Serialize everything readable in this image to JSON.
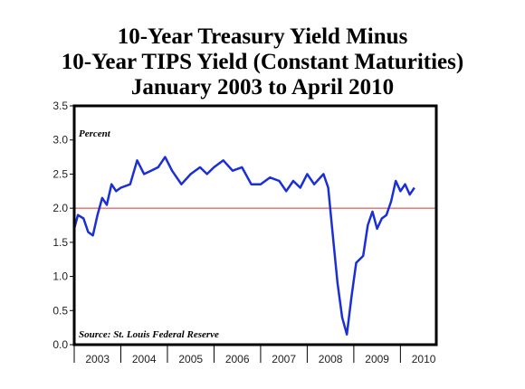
{
  "chart_data": {
    "type": "line",
    "title": [
      "10-Year Treasury Yield Minus",
      "10-Year TIPS Yield (Constant Maturities)",
      "January 2003 to April 2010"
    ],
    "annotations": [
      "Percent",
      "Source: St. Louis Federal Reserve"
    ],
    "series": [
      {
        "color": "#1a2fd6",
        "x": [
          2003.0,
          2003.08,
          2003.2,
          2003.3,
          2003.4,
          2003.5,
          2003.6,
          2003.7,
          2003.8,
          2003.9,
          2004.0,
          2004.2,
          2004.35,
          2004.5,
          2004.65,
          2004.8,
          2004.95,
          2005.1,
          2005.3,
          2005.5,
          2005.7,
          2005.85,
          2006.0,
          2006.2,
          2006.4,
          2006.6,
          2006.8,
          2007.0,
          2007.2,
          2007.4,
          2007.55,
          2007.7,
          2007.85,
          2008.0,
          2008.15,
          2008.35,
          2008.45,
          2008.55,
          2008.65,
          2008.75,
          2008.85,
          2008.95,
          2009.05,
          2009.2,
          2009.3,
          2009.4,
          2009.5,
          2009.6,
          2009.7,
          2009.8,
          2009.9,
          2010.0,
          2010.1,
          2010.2,
          2010.3
        ],
        "values": [
          1.7,
          1.9,
          1.85,
          1.65,
          1.6,
          1.9,
          2.15,
          2.05,
          2.35,
          2.25,
          2.3,
          2.35,
          2.7,
          2.5,
          2.55,
          2.6,
          2.75,
          2.55,
          2.35,
          2.5,
          2.6,
          2.5,
          2.6,
          2.7,
          2.55,
          2.6,
          2.35,
          2.35,
          2.45,
          2.4,
          2.25,
          2.4,
          2.3,
          2.5,
          2.35,
          2.5,
          2.3,
          1.6,
          0.9,
          0.4,
          0.15,
          0.7,
          1.2,
          1.3,
          1.75,
          1.95,
          1.7,
          1.85,
          1.9,
          2.1,
          2.4,
          2.25,
          2.35,
          2.2,
          2.3
        ]
      }
    ],
    "reference_line": {
      "value": 2,
      "color": "#e03030"
    },
    "xlim": [
      2003,
      2010.77
    ],
    "xticks": [
      2003,
      2004,
      2005,
      2006,
      2007,
      2008,
      2009,
      2010
    ],
    "ylim": [
      0,
      3.5
    ],
    "yticks": [
      {
        "value": 0,
        "label": "0.0"
      },
      {
        "value": 0.5,
        "label": "0.5"
      },
      {
        "value": 1,
        "label": "1.0"
      },
      {
        "value": 1.5,
        "label": "1.5"
      },
      {
        "value": 2,
        "label": "2.0"
      },
      {
        "value": 2.5,
        "label": "2.5"
      },
      {
        "value": 3,
        "label": "3.0"
      },
      {
        "value": 3.5,
        "label": "3.5"
      }
    ]
  }
}
